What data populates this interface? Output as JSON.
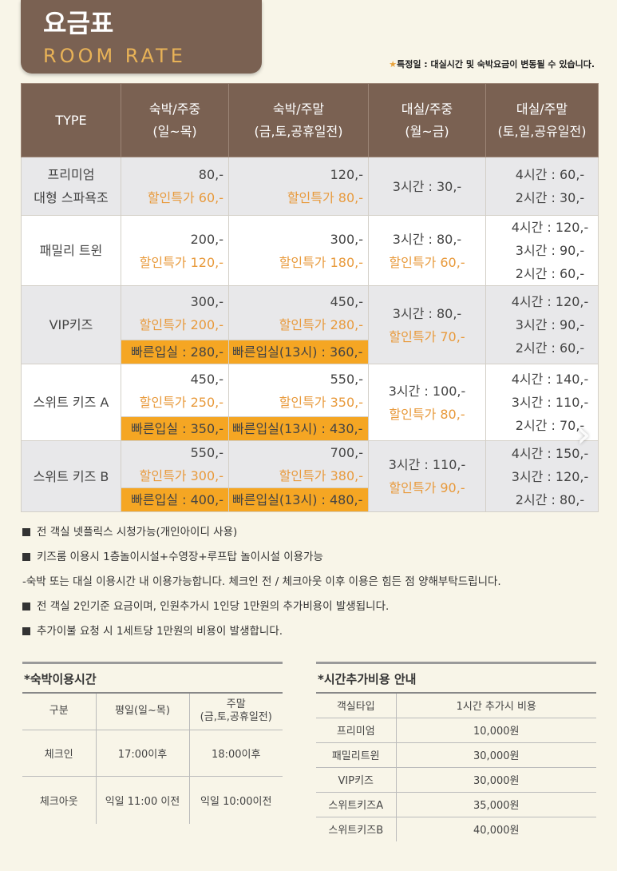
{
  "header": {
    "title_ko": "요금표",
    "title_en": "ROOM RATE",
    "notice_star": "★",
    "notice": "특정일 : 대실시간 및 숙박요금이 변동될 수 있습니다."
  },
  "table": {
    "headers": [
      "TYPE",
      "숙박/주중",
      "(일~목)",
      "숙박/주말",
      "(금,토,공휴일전)",
      "대실/주중",
      "(월~금)",
      "대실/주말",
      "(토,일,공유일전)"
    ],
    "rows": [
      {
        "type": [
          "프리미엄",
          "대형 스파욕조"
        ],
        "wk": "80,-",
        "wk_disc": "할인특가 60,-",
        "we": "120,-",
        "we_disc": "할인특가 80,-",
        "day": "3시간 : 30,-",
        "dayw": [
          "4시간 : 60,-",
          "2시간 : 30,-"
        ]
      },
      {
        "type": [
          "패밀리 트윈"
        ],
        "wk": "200,-",
        "wk_disc": "할인특가 120,-",
        "we": "300,-",
        "we_disc": "할인특가 180,-",
        "day": "3시간 : 80,-",
        "day_disc": "할인특가 60,-",
        "dayw": [
          "4시간 : 120,-",
          "3시간 : 90,-",
          "2시간 : 60,-"
        ]
      },
      {
        "type": [
          "VIP키즈"
        ],
        "wk": "300,-",
        "wk_disc": "할인특가 200,-",
        "wk_fast": "빠른입실 : 280,-",
        "we": "450,-",
        "we_disc": "할인특가 280,-",
        "we_fast": "빠른입실(13시) : 360,-",
        "day": "3시간 : 80,-",
        "day_disc": "할인특가 70,-",
        "dayw": [
          "4시간 : 120,-",
          "3시간 : 90,-",
          "2시간 : 60,-"
        ]
      },
      {
        "type": [
          "스위트 키즈 A"
        ],
        "wk": "450,-",
        "wk_disc": "할인특가 250,-",
        "wk_fast": "빠른입실 : 350,-",
        "we": "550,-",
        "we_disc": "할인특가 350,-",
        "we_fast": "빠른입실(13시) : 430,-",
        "day": "3시간 : 100,-",
        "day_disc": "할인특가 80,-",
        "dayw": [
          "4시간 : 140,-",
          "3시간 : 110,-",
          "2시간 : 70,-"
        ]
      },
      {
        "type": [
          "스위트 키즈 B"
        ],
        "wk": "550,-",
        "wk_disc": "할인특가 300,-",
        "wk_fast": "빠른입실 : 400,-",
        "we": "700,-",
        "we_disc": "할인특가 380,-",
        "we_fast": "빠른입실(13시) : 480,-",
        "day": "3시간 : 110,-",
        "day_disc": "할인특가 90,-",
        "dayw": [
          "4시간 : 150,-",
          "3시간 : 120,-",
          "2시간 : 80,-"
        ]
      }
    ]
  },
  "notes": [
    "전 객실 넷플릭스 시청가능(개인아이디 사용)",
    "키즈룸 이용시 1층놀이시설+수영장+루프탑 놀이시설 이용가능",
    "-숙박 또는 대실 이용시간 내 이용가능합니다. 체크인 전 / 체크아웃 이후 이용은 힘든 점 양해부탁드립니다.",
    "전 객실 2인기준 요금이며, 인원추가시 1인당 1만원의 추가비용이 발생됩니다.",
    "추가이불 요청 시 1세트당 1만원의 비용이 발생합니다."
  ],
  "checkin": {
    "title": "*숙박이용시간",
    "headers": [
      "구분",
      "평일(일~목)",
      "주말",
      "(금,토,공휴일전)"
    ],
    "rows": [
      [
        "체크인",
        "17:00이후",
        "18:00이후"
      ],
      [
        "체크아웃",
        "익일 11:00 이전",
        "익일 10:00이전"
      ]
    ]
  },
  "extra": {
    "title": "*시간추가비용 안내",
    "headers": [
      "객실타입",
      "1시간 추가시 비용"
    ],
    "rows": [
      [
        "프리미엄",
        "10,000원"
      ],
      [
        "패밀리트윈",
        "30,000원"
      ],
      [
        "VIP키즈",
        "30,000원"
      ],
      [
        "스위트키즈A",
        "35,000원"
      ],
      [
        "스위트키즈B",
        "40,000원"
      ]
    ]
  },
  "icons": {
    "next": "chevron-right-icon",
    "note_bullet": "square-bullet"
  },
  "colors": {
    "header_brown": "#7a6152",
    "accent_orange": "#f5a623",
    "discount_text": "#e89a3c",
    "title_gold": "#e8b257"
  }
}
